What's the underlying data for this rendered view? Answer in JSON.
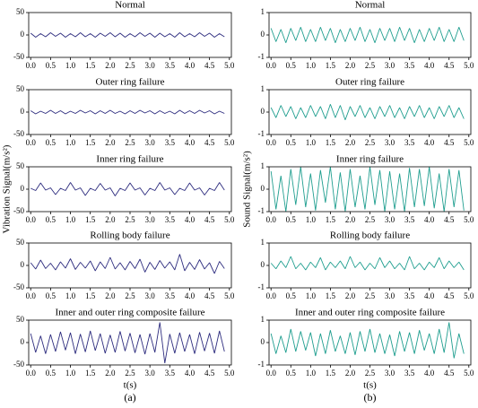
{
  "chart_data": [
    {
      "type": "line",
      "title": "Normal",
      "color": "#2e2d7f",
      "xlim": [
        -0.05,
        5.05
      ],
      "ylim": [
        -50,
        50
      ],
      "yticks": [
        -50,
        0,
        50
      ],
      "xticks": [
        {
          "value": 0,
          "label": "0.0"
        },
        0.5,
        {
          "value": 1,
          "label": "1.0"
        },
        1.5,
        {
          "value": 2,
          "label": "2.0"
        },
        2.5,
        {
          "value": 3,
          "label": "3.0"
        },
        3.5,
        {
          "value": 4,
          "label": "4.0"
        },
        4.5,
        {
          "value": 5,
          "label": "5.0"
        }
      ],
      "x": [
        0,
        0.125,
        0.25,
        0.375,
        0.5,
        0.625,
        0.75,
        0.875,
        1,
        1.125,
        1.25,
        1.375,
        1.5,
        1.625,
        1.75,
        1.875,
        2,
        2.125,
        2.25,
        2.375,
        2.5,
        2.625,
        2.75,
        2.875,
        3,
        3.125,
        3.25,
        3.375,
        3.5,
        3.625,
        3.75,
        3.875,
        4,
        4.125,
        4.25,
        4.375,
        4.5,
        4.625,
        4.75,
        4.875
      ],
      "values": [
        4,
        -5,
        3,
        -4,
        5,
        -3,
        4,
        -5,
        3,
        -4,
        5,
        -4,
        3,
        -5,
        4,
        -3,
        5,
        -4,
        4,
        -5,
        3,
        -4,
        5,
        -3,
        4,
        -5,
        4,
        -4,
        3,
        -5,
        5,
        -4,
        3,
        -4,
        5,
        -3,
        4,
        -5,
        3,
        -4
      ]
    },
    {
      "type": "line",
      "title": "Outer ring failure",
      "color": "#2e2d7f",
      "xlim": [
        -0.05,
        5.05
      ],
      "ylim": [
        -50,
        50
      ],
      "yticks": [
        -50,
        0,
        50
      ],
      "xticks": [
        {
          "value": 0,
          "label": "0.0"
        },
        0.5,
        {
          "value": 1,
          "label": "1.0"
        },
        1.5,
        {
          "value": 2,
          "label": "2.0"
        },
        2.5,
        {
          "value": 3,
          "label": "3.0"
        },
        3.5,
        {
          "value": 4,
          "label": "4.0"
        },
        4.5,
        {
          "value": 5,
          "label": "5.0"
        }
      ],
      "x": [
        0,
        0.125,
        0.25,
        0.375,
        0.5,
        0.625,
        0.75,
        0.875,
        1,
        1.125,
        1.25,
        1.375,
        1.5,
        1.625,
        1.75,
        1.875,
        2,
        2.125,
        2.25,
        2.375,
        2.5,
        2.625,
        2.75,
        2.875,
        3,
        3.125,
        3.25,
        3.375,
        3.5,
        3.625,
        3.75,
        3.875,
        4,
        4.125,
        4.25,
        4.375,
        4.5,
        4.625,
        4.75,
        4.875
      ],
      "values": [
        3,
        -4,
        2,
        -3,
        4,
        -3,
        3,
        -4,
        2,
        -3,
        4,
        -2,
        3,
        -4,
        3,
        -3,
        4,
        -3,
        2,
        -4,
        3,
        -3,
        4,
        -2,
        3,
        -4,
        3,
        -3,
        2,
        -4,
        4,
        -3,
        3,
        -3,
        4,
        -2,
        3,
        -4,
        2,
        -3
      ]
    },
    {
      "type": "line",
      "title": "Inner ring failure",
      "ylabel": "Vibration Signal(m/s²)",
      "color": "#2e2d7f",
      "xlim": [
        -0.05,
        5.05
      ],
      "ylim": [
        -50,
        50
      ],
      "yticks": [
        -50,
        0,
        50
      ],
      "xticks": [
        {
          "value": 0,
          "label": "0.0"
        },
        0.5,
        {
          "value": 1,
          "label": "1.0"
        },
        1.5,
        {
          "value": 2,
          "label": "2.0"
        },
        2.5,
        {
          "value": 3,
          "label": "3.0"
        },
        3.5,
        {
          "value": 4,
          "label": "4.0"
        },
        4.5,
        {
          "value": 5,
          "label": "5.0"
        }
      ],
      "x": [
        0,
        0.125,
        0.25,
        0.375,
        0.5,
        0.625,
        0.75,
        0.875,
        1,
        1.125,
        1.25,
        1.375,
        1.5,
        1.625,
        1.75,
        1.875,
        2,
        2.125,
        2.25,
        2.375,
        2.5,
        2.625,
        2.75,
        2.875,
        3,
        3.125,
        3.25,
        3.375,
        3.5,
        3.625,
        3.75,
        3.875,
        4,
        4.125,
        4.25,
        4.375,
        4.5,
        4.625,
        4.75,
        4.875
      ],
      "values": [
        2,
        -3,
        14,
        -2,
        3,
        -12,
        2,
        -3,
        15,
        -2,
        3,
        -14,
        2,
        -3,
        13,
        -2,
        3,
        -15,
        2,
        -3,
        14,
        -2,
        3,
        -13,
        2,
        -3,
        15,
        -2,
        3,
        -12,
        2,
        -3,
        14,
        -2,
        3,
        -13,
        2,
        -3,
        15,
        -2
      ]
    },
    {
      "type": "line",
      "title": "Rolling body failure",
      "color": "#2e2d7f",
      "xlim": [
        -0.05,
        5.05
      ],
      "ylim": [
        -50,
        50
      ],
      "yticks": [
        -50,
        0,
        50
      ],
      "xticks": [
        {
          "value": 0,
          "label": "0.0"
        },
        0.5,
        {
          "value": 1,
          "label": "1.0"
        },
        1.5,
        {
          "value": 2,
          "label": "2.0"
        },
        2.5,
        {
          "value": 3,
          "label": "3.0"
        },
        3.5,
        {
          "value": 4,
          "label": "4.0"
        },
        4.5,
        {
          "value": 5,
          "label": "5.0"
        }
      ],
      "x": [
        0,
        0.125,
        0.25,
        0.375,
        0.5,
        0.625,
        0.75,
        0.875,
        1,
        1.125,
        1.25,
        1.375,
        1.5,
        1.625,
        1.75,
        1.875,
        2,
        2.125,
        2.25,
        2.375,
        2.5,
        2.625,
        2.75,
        2.875,
        3,
        3.125,
        3.25,
        3.375,
        3.5,
        3.625,
        3.75,
        3.875,
        4,
        4.125,
        4.25,
        4.375,
        4.5,
        4.625,
        4.75,
        4.875
      ],
      "values": [
        6,
        -8,
        12,
        -7,
        5,
        -10,
        8,
        -6,
        15,
        -9,
        7,
        -6,
        10,
        -12,
        8,
        -7,
        18,
        -8,
        6,
        -10,
        9,
        -7,
        14,
        -15,
        7,
        -9,
        11,
        -6,
        8,
        -10,
        25,
        -12,
        7,
        -9,
        13,
        -8,
        6,
        -18,
        9,
        -7
      ]
    },
    {
      "type": "line",
      "title": "Inner and outer ring composite failure",
      "xlabel": "t(s)",
      "caption": "(a)",
      "color": "#2e2d7f",
      "xlim": [
        -0.05,
        5.05
      ],
      "ylim": [
        -50,
        50
      ],
      "yticks": [
        -50,
        0,
        50
      ],
      "xticks": [
        {
          "value": 0,
          "label": "0.0"
        },
        0.5,
        {
          "value": 1,
          "label": "1.0"
        },
        1.5,
        {
          "value": 2,
          "label": "2.0"
        },
        2.5,
        {
          "value": 3,
          "label": "3.0"
        },
        3.5,
        {
          "value": 4,
          "label": "4.0"
        },
        4.5,
        {
          "value": 5,
          "label": "5.0"
        }
      ],
      "x": [
        0,
        0.125,
        0.25,
        0.375,
        0.5,
        0.625,
        0.75,
        0.875,
        1,
        1.125,
        1.25,
        1.375,
        1.5,
        1.625,
        1.75,
        1.875,
        2,
        2.125,
        2.25,
        2.375,
        2.5,
        2.625,
        2.75,
        2.875,
        3,
        3.125,
        3.25,
        3.375,
        3.5,
        3.625,
        3.75,
        3.875,
        4,
        4.125,
        4.25,
        4.375,
        4.5,
        4.625,
        4.75,
        4.875
      ],
      "values": [
        20,
        -22,
        15,
        -25,
        18,
        -20,
        24,
        -17,
        22,
        -25,
        19,
        -21,
        26,
        -18,
        20,
        -24,
        17,
        -22,
        25,
        -19,
        21,
        -23,
        18,
        -26,
        20,
        -22,
        45,
        -46,
        19,
        -24,
        22,
        -20,
        18,
        -25,
        23,
        -19,
        21,
        -24,
        26,
        -20
      ]
    },
    {
      "type": "line",
      "title": "Normal",
      "color": "#1f9e8f",
      "xlim": [
        -0.05,
        5.05
      ],
      "ylim": [
        -1,
        1
      ],
      "yticks": [
        -1,
        0,
        1
      ],
      "xticks": [
        {
          "value": 0,
          "label": "0.0"
        },
        0.5,
        {
          "value": 1,
          "label": "1.0"
        },
        1.5,
        {
          "value": 2,
          "label": "2.0"
        },
        2.5,
        {
          "value": 3,
          "label": "3.0"
        },
        3.5,
        {
          "value": 4,
          "label": "4.0"
        },
        4.5,
        {
          "value": 5,
          "label": "5.0"
        }
      ],
      "x": [
        0,
        0.125,
        0.25,
        0.375,
        0.5,
        0.625,
        0.75,
        0.875,
        1,
        1.125,
        1.25,
        1.375,
        1.5,
        1.625,
        1.75,
        1.875,
        2,
        2.125,
        2.25,
        2.375,
        2.5,
        2.625,
        2.75,
        2.875,
        3,
        3.125,
        3.25,
        3.375,
        3.5,
        3.625,
        3.75,
        3.875,
        4,
        4.125,
        4.25,
        4.375,
        4.5,
        4.625,
        4.75,
        4.875
      ],
      "values": [
        0.3,
        -0.3,
        0.25,
        -0.35,
        0.3,
        -0.25,
        0.35,
        -0.3,
        0.25,
        -0.3,
        0.35,
        -0.25,
        0.3,
        -0.35,
        0.25,
        -0.3,
        0.3,
        -0.25,
        0.35,
        -0.3,
        0.25,
        -0.35,
        0.3,
        -0.25,
        0.3,
        -0.3,
        0.35,
        -0.25,
        0.3,
        -0.35,
        0.25,
        -0.3,
        0.3,
        -0.25,
        0.35,
        -0.3,
        0.25,
        -0.3,
        0.35,
        -0.25
      ]
    },
    {
      "type": "line",
      "title": "Outer ring failure",
      "color": "#1f9e8f",
      "xlim": [
        -0.05,
        5.05
      ],
      "ylim": [
        -1,
        1
      ],
      "yticks": [
        -1,
        0,
        1
      ],
      "xticks": [
        {
          "value": 0,
          "label": "0.0"
        },
        0.5,
        {
          "value": 1,
          "label": "1.0"
        },
        1.5,
        {
          "value": 2,
          "label": "2.0"
        },
        2.5,
        {
          "value": 3,
          "label": "3.0"
        },
        3.5,
        {
          "value": 4,
          "label": "4.0"
        },
        4.5,
        {
          "value": 5,
          "label": "5.0"
        }
      ],
      "x": [
        0,
        0.125,
        0.25,
        0.375,
        0.5,
        0.625,
        0.75,
        0.875,
        1,
        1.125,
        1.25,
        1.375,
        1.5,
        1.625,
        1.75,
        1.875,
        2,
        2.125,
        2.25,
        2.375,
        2.5,
        2.625,
        2.75,
        2.875,
        3,
        3.125,
        3.25,
        3.375,
        3.5,
        3.625,
        3.75,
        3.875,
        4,
        4.125,
        4.25,
        4.375,
        4.5,
        4.625,
        4.75,
        4.875
      ],
      "values": [
        0.2,
        -0.25,
        0.3,
        -0.2,
        0.25,
        -0.3,
        0.2,
        -0.25,
        0.3,
        -0.2,
        0.25,
        -0.3,
        0.35,
        -0.25,
        0.3,
        -0.35,
        0.25,
        -0.2,
        0.3,
        -0.25,
        0.2,
        -0.3,
        0.25,
        -0.2,
        0.3,
        -0.25,
        0.2,
        -0.3,
        0.25,
        -0.2,
        0.3,
        -0.25,
        0.2,
        -0.3,
        0.25,
        -0.2,
        0.3,
        -0.25,
        0.2,
        -0.3
      ]
    },
    {
      "type": "line",
      "title": "Inner ring failure",
      "ylabel": "Sound Signal(m/s²)",
      "color": "#1f9e8f",
      "xlim": [
        -0.05,
        5.05
      ],
      "ylim": [
        -1,
        1
      ],
      "yticks": [
        -1,
        0,
        1
      ],
      "xticks": [
        {
          "value": 0,
          "label": "0.0"
        },
        0.5,
        {
          "value": 1,
          "label": "1.0"
        },
        1.5,
        {
          "value": 2,
          "label": "2.0"
        },
        2.5,
        {
          "value": 3,
          "label": "3.0"
        },
        3.5,
        {
          "value": 4,
          "label": "4.0"
        },
        4.5,
        {
          "value": 5,
          "label": "5.0"
        }
      ],
      "x": [
        0,
        0.125,
        0.25,
        0.375,
        0.5,
        0.625,
        0.75,
        0.875,
        1,
        1.125,
        1.25,
        1.375,
        1.5,
        1.625,
        1.75,
        1.875,
        2,
        2.125,
        2.25,
        2.375,
        2.5,
        2.625,
        2.75,
        2.875,
        3,
        3.125,
        3.25,
        3.375,
        3.5,
        3.625,
        3.75,
        3.875,
        4,
        4.125,
        4.25,
        4.375,
        4.5,
        4.625,
        4.75,
        4.875
      ],
      "values": [
        0.8,
        -0.9,
        0.6,
        -1,
        0.9,
        -0.7,
        1,
        -0.8,
        0.7,
        -0.95,
        0.85,
        -0.6,
        1,
        -0.9,
        0.75,
        -1,
        0.9,
        -0.8,
        0.6,
        -0.9,
        1,
        -0.7,
        0.85,
        -1,
        0.8,
        -0.9,
        0.7,
        -1,
        0.95,
        -0.8,
        0.9,
        -0.75,
        1,
        -0.85,
        0.7,
        -1,
        0.9,
        -0.8,
        0.85,
        -0.95
      ]
    },
    {
      "type": "line",
      "title": "Rolling body failure",
      "color": "#1f9e8f",
      "xlim": [
        -0.05,
        5.05
      ],
      "ylim": [
        -1,
        1
      ],
      "yticks": [
        -1,
        0,
        1
      ],
      "xticks": [
        {
          "value": 0,
          "label": "0.0"
        },
        0.5,
        {
          "value": 1,
          "label": "1.0"
        },
        1.5,
        {
          "value": 2,
          "label": "2.0"
        },
        2.5,
        {
          "value": 3,
          "label": "3.0"
        },
        3.5,
        {
          "value": 4,
          "label": "4.0"
        },
        4.5,
        {
          "value": 5,
          "label": "5.0"
        }
      ],
      "x": [
        0,
        0.125,
        0.25,
        0.375,
        0.5,
        0.625,
        0.75,
        0.875,
        1,
        1.125,
        1.25,
        1.375,
        1.5,
        1.625,
        1.75,
        1.875,
        2,
        2.125,
        2.25,
        2.375,
        2.5,
        2.625,
        2.75,
        2.875,
        3,
        3.125,
        3.25,
        3.375,
        3.5,
        3.625,
        3.75,
        3.875,
        4,
        4.125,
        4.25,
        4.375,
        4.5,
        4.625,
        4.75,
        4.875
      ],
      "values": [
        0.1,
        -0.15,
        0.2,
        -0.1,
        0.4,
        -0.15,
        0.1,
        -0.2,
        0.15,
        -0.1,
        0.35,
        -0.2,
        0.15,
        -0.1,
        0.2,
        -0.15,
        0.4,
        -0.1,
        0.15,
        -0.2,
        0.1,
        -0.15,
        0.35,
        -0.1,
        0.2,
        -0.15,
        0.1,
        -0.2,
        0.4,
        -0.15,
        0.1,
        -0.2,
        0.15,
        -0.1,
        0.35,
        -0.15,
        0.2,
        -0.1,
        0.15,
        -0.2
      ]
    },
    {
      "type": "line",
      "title": "Inner and outer ring composite failure",
      "xlabel": "t(s)",
      "caption": "(b)",
      "color": "#1f9e8f",
      "xlim": [
        -0.05,
        5.05
      ],
      "ylim": [
        -1,
        1
      ],
      "yticks": [
        -1,
        0,
        1
      ],
      "xticks": [
        {
          "value": 0,
          "label": "0.0"
        },
        0.5,
        {
          "value": 1,
          "label": "1.0"
        },
        1.5,
        {
          "value": 2,
          "label": "2.0"
        },
        2.5,
        {
          "value": 3,
          "label": "3.0"
        },
        3.5,
        {
          "value": 4,
          "label": "4.0"
        },
        4.5,
        {
          "value": 5,
          "label": "5.0"
        }
      ],
      "x": [
        0,
        0.125,
        0.25,
        0.375,
        0.5,
        0.625,
        0.75,
        0.875,
        1,
        1.125,
        1.25,
        1.375,
        1.5,
        1.625,
        1.75,
        1.875,
        2,
        2.125,
        2.25,
        2.375,
        2.5,
        2.625,
        2.75,
        2.875,
        3,
        3.125,
        3.25,
        3.375,
        3.5,
        3.625,
        3.75,
        3.875,
        4,
        4.125,
        4.25,
        4.375,
        4.5,
        4.625,
        4.75,
        4.875
      ],
      "values": [
        0.4,
        -0.5,
        0.3,
        -0.45,
        0.6,
        -0.4,
        0.5,
        -0.35,
        0.45,
        -0.6,
        0.4,
        -0.5,
        0.55,
        -0.4,
        0.3,
        -0.5,
        0.45,
        -0.55,
        0.5,
        -0.4,
        0.6,
        -0.45,
        0.4,
        -0.5,
        0.35,
        -0.6,
        0.5,
        -0.4,
        0.45,
        -0.5,
        0.55,
        -0.35,
        0.4,
        -0.5,
        0.6,
        -0.45,
        0.9,
        -0.7,
        0.4,
        -0.5
      ]
    }
  ]
}
